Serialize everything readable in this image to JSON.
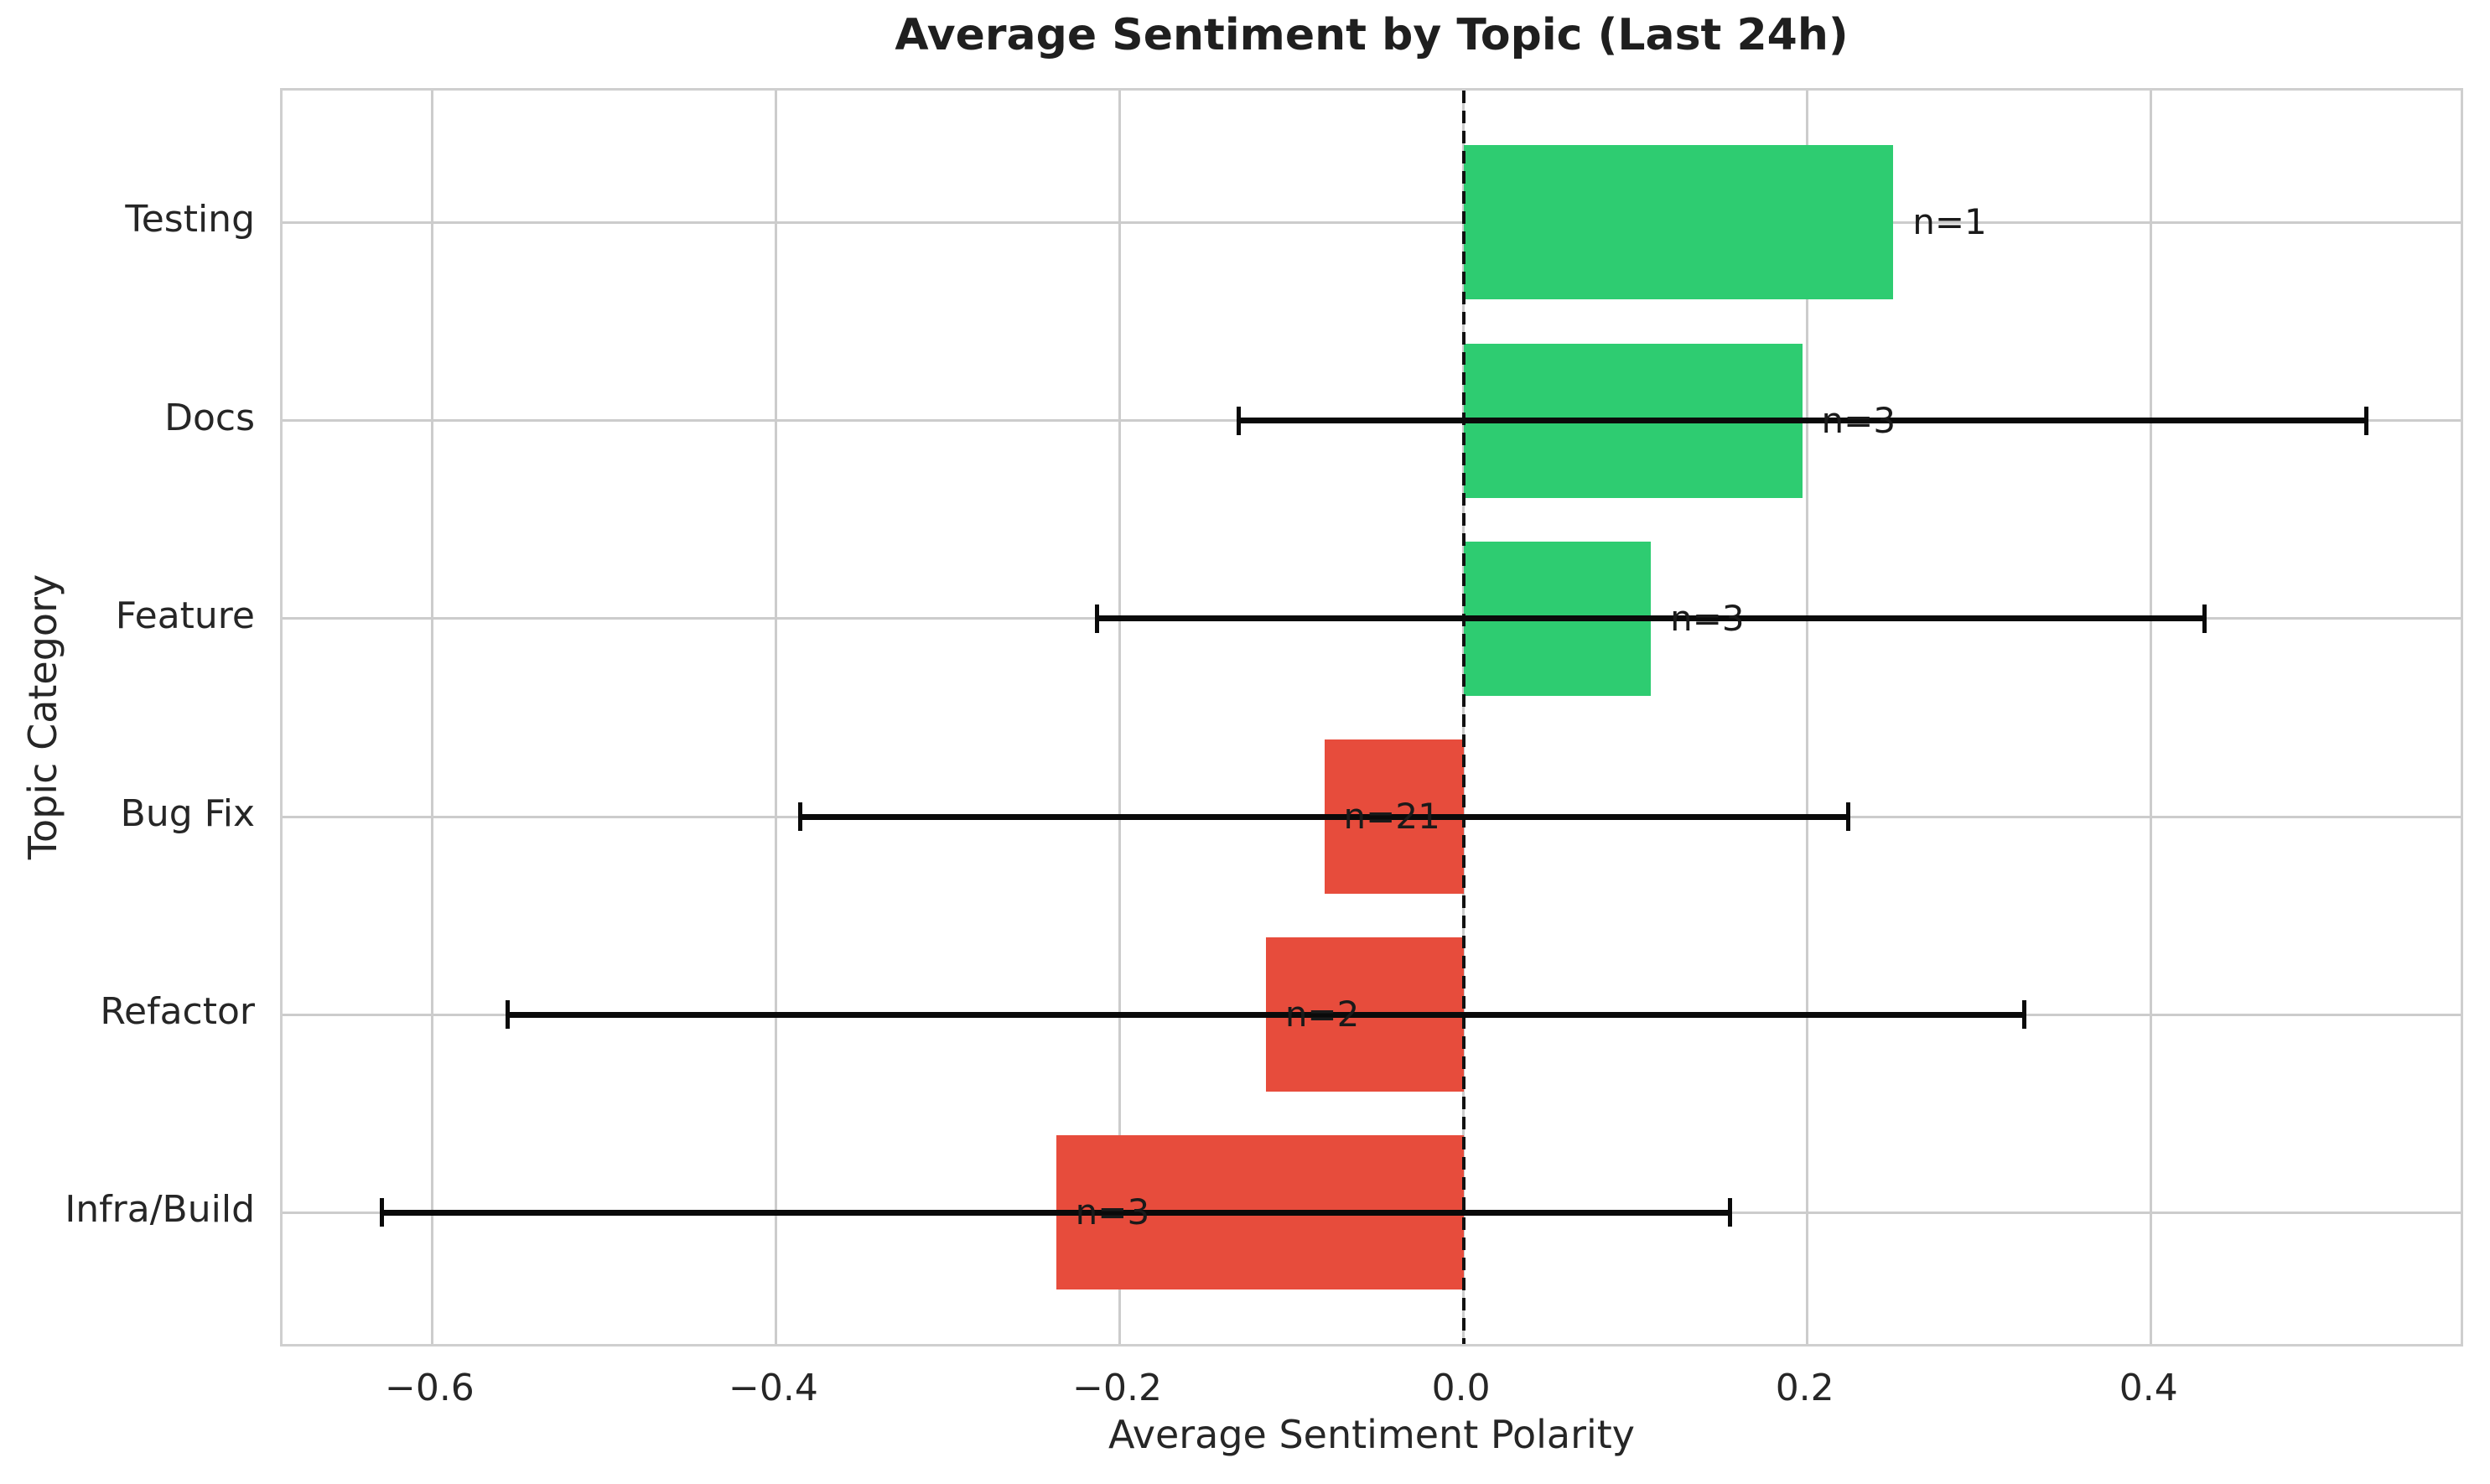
{
  "title": "Average Sentiment by Topic (Last 24h)",
  "axes": {
    "x_title": "Average Sentiment Polarity",
    "y_title": "Topic Category"
  },
  "colors": {
    "positive_bar": "#2ecc71",
    "negative_bar": "#e74c3c",
    "grid": "#cccccc",
    "frame": "#cfcfcf",
    "error_bar": "#0a0a0a",
    "zero_line": "#111111",
    "text": "#262626",
    "title_text": "#1f1f1f",
    "background": "#ffffff"
  },
  "chart_data": {
    "type": "bar",
    "orientation": "horizontal",
    "title": "Average Sentiment by Topic (Last 24h)",
    "xlabel": "Average Sentiment Polarity",
    "ylabel": "Topic Category",
    "grid": true,
    "zero_line_dashed": true,
    "xlim": [
      -0.687,
      0.583
    ],
    "xticks": [
      -0.6,
      -0.4,
      -0.2,
      0.0,
      0.2,
      0.4
    ],
    "xtick_labels": [
      "−0.6",
      "−0.4",
      "−0.2",
      "0.0",
      "0.2",
      "0.4"
    ],
    "categories": [
      "Testing",
      "Docs",
      "Feature",
      "Bug Fix",
      "Refactor",
      "Infra/Build"
    ],
    "values": [
      0.25,
      0.197,
      0.109,
      -0.081,
      -0.115,
      -0.237
    ],
    "err_low": [
      null,
      -0.131,
      -0.213,
      -0.386,
      -0.556,
      -0.629
    ],
    "err_high": [
      null,
      0.525,
      0.431,
      0.224,
      0.326,
      0.155
    ],
    "n_counts": [
      1,
      3,
      3,
      21,
      2,
      3
    ],
    "n_labels": [
      "n=1",
      "n=3",
      "n=3",
      "n=21",
      "n=2",
      "n=3"
    ],
    "bar_colors": [
      "#2ecc71",
      "#2ecc71",
      "#2ecc71",
      "#e74c3c",
      "#e74c3c",
      "#e74c3c"
    ]
  }
}
